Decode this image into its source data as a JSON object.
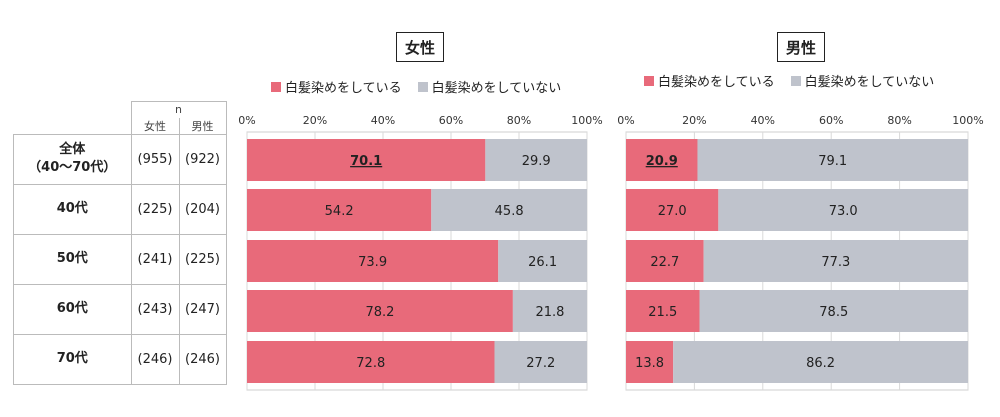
{
  "colors": {
    "dyed": "#e86a7a",
    "not_dyed": "#bfc3cc"
  },
  "left_table": {
    "n_header": "n",
    "col_female": "女性",
    "col_male": "男性",
    "rows": [
      {
        "label_line1": "全体",
        "label_line2": "（40～70代）",
        "n_female": "(955)",
        "n_male": "(922)"
      },
      {
        "label_line1": "40代",
        "label_line2": "",
        "n_female": "(225)",
        "n_male": "(204)"
      },
      {
        "label_line1": "50代",
        "label_line2": "",
        "n_female": "(241)",
        "n_male": "(225)"
      },
      {
        "label_line1": "60代",
        "label_line2": "",
        "n_female": "(243)",
        "n_male": "(247)"
      },
      {
        "label_line1": "70代",
        "label_line2": "",
        "n_female": "(246)",
        "n_male": "(246)"
      }
    ]
  },
  "chart_data": [
    {
      "type": "bar",
      "orientation": "horizontal-stacked-100",
      "title": "女性",
      "categories": [
        "全体（40～70代）",
        "40代",
        "50代",
        "60代",
        "70代"
      ],
      "series": [
        {
          "name": "白髪染めをしている",
          "values": [
            70.1,
            54.2,
            73.9,
            78.2,
            72.8
          ]
        },
        {
          "name": "白髪染めをしていない",
          "values": [
            29.9,
            45.8,
            26.1,
            21.8,
            27.2
          ]
        }
      ],
      "xlim": [
        0,
        100
      ],
      "xticks": [
        "0%",
        "20%",
        "40%",
        "60%",
        "80%",
        "100%"
      ],
      "grid": true,
      "legend": "top"
    },
    {
      "type": "bar",
      "orientation": "horizontal-stacked-100",
      "title": "男性",
      "categories": [
        "全体（40～70代）",
        "40代",
        "50代",
        "60代",
        "70代"
      ],
      "series": [
        {
          "name": "白髪染めをしている",
          "values": [
            20.9,
            27.0,
            22.7,
            21.5,
            13.8
          ]
        },
        {
          "name": "白髪染めをしていない",
          "values": [
            79.1,
            73.0,
            77.3,
            78.5,
            86.2
          ]
        }
      ],
      "xlim": [
        0,
        100
      ],
      "xticks": [
        "0%",
        "20%",
        "40%",
        "60%",
        "80%",
        "100%"
      ],
      "grid": true,
      "legend": "top"
    }
  ]
}
